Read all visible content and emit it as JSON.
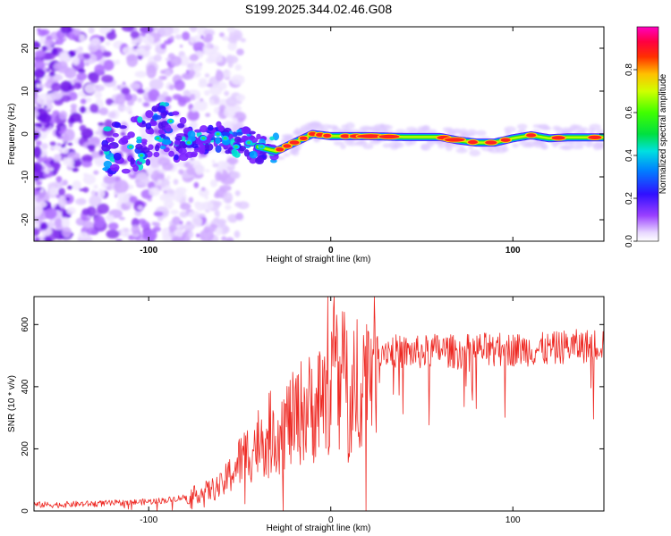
{
  "title": "S199.2025.344.02.46.G08",
  "colors": {
    "snr_line": "#ee2a24",
    "axes": "#000000",
    "background": "#ffffff"
  },
  "chart_data": [
    {
      "type": "heatmap",
      "name": "spectrogram",
      "xlabel": "Height of straight line (km)",
      "ylabel": "Frequency (Hz)",
      "xlim": [
        -163,
        150
      ],
      "ylim": [
        -25,
        25
      ],
      "xticks": [
        -100,
        0,
        100
      ],
      "xtick_labels": [
        "-100",
        "0",
        "100"
      ],
      "yticks": [
        -20,
        -10,
        0,
        10,
        20
      ],
      "ytick_labels": [
        "-20",
        "-10",
        "0",
        "10",
        "20"
      ],
      "colorbar": {
        "label": "Normalized spectral amplitude",
        "range": [
          0,
          1
        ],
        "ticks": [
          0.0,
          0.2,
          0.4,
          0.6,
          0.8
        ],
        "tick_labels": [
          "0.0",
          "0.2",
          "0.4",
          "0.6",
          "0.8"
        ],
        "colormap": "rainbow (white-violet-blue-cyan-green-yellow-red-magenta)"
      },
      "signal_ridge": {
        "description": "Peak frequency track vs height",
        "x": [
          -163,
          -130,
          -110,
          -100,
          -90,
          -80,
          -70,
          -60,
          -50,
          -40,
          -30,
          -20,
          -10,
          0,
          20,
          40,
          60,
          70,
          80,
          90,
          100,
          110,
          120,
          130,
          150
        ],
        "y": [
          -5,
          -4,
          -3,
          -1,
          2,
          -2,
          -1,
          0,
          -2,
          -3,
          -4,
          -2,
          0,
          -0.5,
          -0.5,
          -0.7,
          -0.7,
          -1.5,
          -2,
          -2,
          -1,
          -0.3,
          -1,
          -0.8,
          -0.8
        ]
      }
    },
    {
      "type": "line",
      "name": "snr",
      "xlabel": "Height of straight line (km)",
      "ylabel": "SNR (10 * v/v)",
      "xlim": [
        -163,
        150
      ],
      "ylim": [
        0,
        690
      ],
      "xticks": [
        -100,
        0,
        100
      ],
      "xtick_labels": [
        "-100",
        "0",
        "100"
      ],
      "yticks": [
        0,
        200,
        400,
        600
      ],
      "ytick_labels": [
        "0",
        "200",
        "400",
        "600"
      ],
      "series": [
        {
          "name": "SNR",
          "x": [
            -163,
            -150,
            -140,
            -120,
            -100,
            -90,
            -80,
            -70,
            -60,
            -55,
            -50,
            -45,
            -40,
            -35,
            -30,
            -25,
            -20,
            -15,
            -10,
            -5,
            0,
            5,
            8,
            10,
            12,
            15,
            18,
            20,
            25,
            30,
            40,
            50,
            60,
            70,
            80,
            90,
            100,
            110,
            120,
            130,
            140,
            150
          ],
          "y": [
            20,
            20,
            22,
            25,
            30,
            35,
            45,
            60,
            80,
            120,
            160,
            190,
            220,
            250,
            250,
            280,
            290,
            330,
            330,
            360,
            400,
            420,
            440,
            300,
            400,
            450,
            430,
            470,
            520,
            520,
            510,
            510,
            520,
            510,
            520,
            520,
            520,
            520,
            520,
            530,
            530,
            540
          ]
        }
      ]
    }
  ]
}
